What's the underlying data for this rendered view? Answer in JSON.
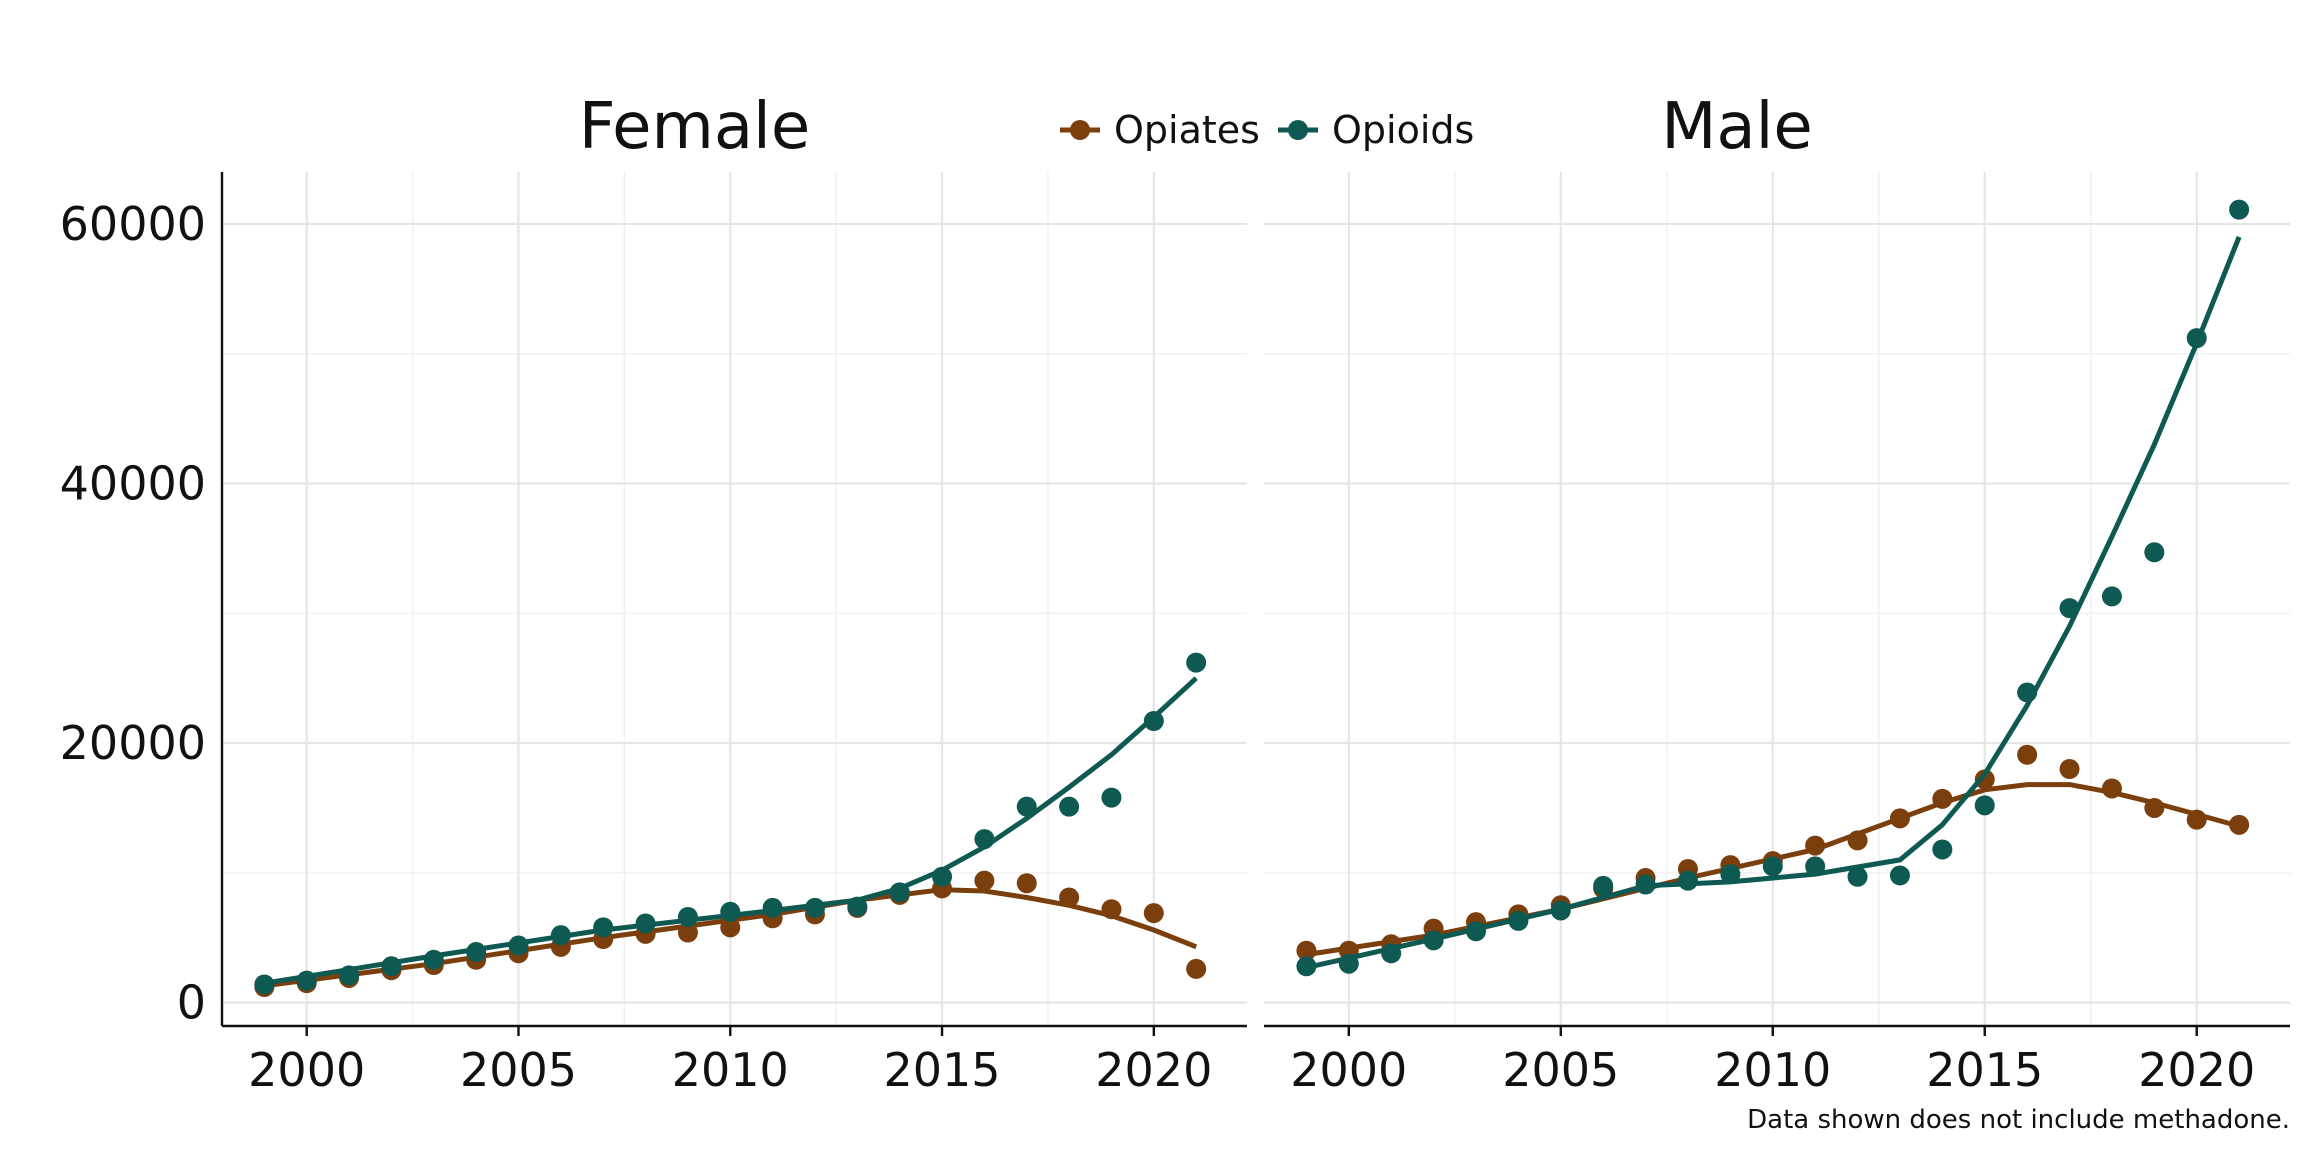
{
  "chart_data": {
    "type": "scatter",
    "legend": {
      "placement": "top-center",
      "entries": [
        {
          "name": "Opiates",
          "color": "#7B3F0E"
        },
        {
          "name": "Opioids",
          "color": "#0E5A52"
        }
      ]
    },
    "caption": "Data shown does not include methadone.",
    "x_ticks": [
      2000,
      2005,
      2010,
      2015,
      2020
    ],
    "y_ticks": [
      0,
      20000,
      40000,
      60000
    ],
    "xlim": [
      1998.0,
      2022.2
    ],
    "ylim": [
      -1800,
      64000
    ],
    "grid": true,
    "smoothed_trend_lines": true,
    "panels": [
      {
        "title": "Female",
        "series": [
          {
            "name": "Opiates",
            "color": "#7B3F0E",
            "x": [
              1999,
              2000,
              2001,
              2002,
              2003,
              2004,
              2005,
              2006,
              2007,
              2008,
              2009,
              2010,
              2011,
              2012,
              2013,
              2014,
              2015,
              2016,
              2017,
              2018,
              2019,
              2020,
              2021
            ],
            "y": [
              1200,
              1500,
              1900,
              2500,
              2900,
              3300,
              3800,
              4300,
              4900,
              5300,
              5400,
              5800,
              6500,
              6800,
              7300,
              8300,
              8800,
              9400,
              9200,
              8100,
              7200,
              6900,
              2600
            ],
            "trend": [
              [
                1999,
                1300
              ],
              [
                2003,
                3000
              ],
              [
                2007,
                5000
              ],
              [
                2011,
                6800
              ],
              [
                2013,
                7900
              ],
              [
                2015,
                8700
              ],
              [
                2016,
                8600
              ],
              [
                2017,
                8100
              ],
              [
                2018,
                7500
              ],
              [
                2019,
                6700
              ],
              [
                2020,
                5600
              ],
              [
                2021,
                4300
              ]
            ]
          },
          {
            "name": "Opioids",
            "color": "#0E5A52",
            "x": [
              1999,
              2000,
              2001,
              2002,
              2003,
              2004,
              2005,
              2006,
              2007,
              2008,
              2009,
              2010,
              2011,
              2012,
              2013,
              2014,
              2015,
              2016,
              2017,
              2018,
              2019,
              2020,
              2021
            ],
            "y": [
              1400,
              1700,
              2100,
              2800,
              3300,
              3900,
              4400,
              5200,
              5800,
              6100,
              6600,
              7000,
              7300,
              7300,
              7400,
              8500,
              9700,
              12600,
              15100,
              15100,
              15800,
              21700,
              26200
            ],
            "trend": [
              [
                1999,
                1500
              ],
              [
                2003,
                3600
              ],
              [
                2007,
                5600
              ],
              [
                2011,
                7100
              ],
              [
                2013,
                7900
              ],
              [
                2014,
                8800
              ],
              [
                2015,
                10200
              ],
              [
                2016,
                12000
              ],
              [
                2017,
                14200
              ],
              [
                2018,
                16600
              ],
              [
                2019,
                19100
              ],
              [
                2020,
                22000
              ],
              [
                2021,
                25000
              ]
            ]
          }
        ]
      },
      {
        "title": "Male",
        "series": [
          {
            "name": "Opiates",
            "color": "#7B3F0E",
            "x": [
              1999,
              2000,
              2001,
              2002,
              2003,
              2004,
              2005,
              2006,
              2007,
              2008,
              2009,
              2010,
              2011,
              2012,
              2013,
              2014,
              2015,
              2016,
              2017,
              2018,
              2019,
              2020,
              2021
            ],
            "y": [
              4000,
              4000,
              4500,
              5700,
              6200,
              6800,
              7500,
              8800,
              9600,
              10300,
              10600,
              10900,
              12100,
              12500,
              14200,
              15700,
              17200,
              19100,
              18000,
              16500,
              15000,
              14100,
              13700
            ],
            "trend": [
              [
                1999,
                3700
              ],
              [
                2002,
                5200
              ],
              [
                2005,
                7200
              ],
              [
                2008,
                9600
              ],
              [
                2011,
                11800
              ],
              [
                2013,
                14200
              ],
              [
                2014,
                15400
              ],
              [
                2015,
                16400
              ],
              [
                2016,
                16800
              ],
              [
                2017,
                16800
              ],
              [
                2018,
                16200
              ],
              [
                2019,
                15400
              ],
              [
                2020,
                14500
              ],
              [
                2021,
                13600
              ]
            ]
          },
          {
            "name": "Opioids",
            "color": "#0E5A52",
            "x": [
              1999,
              2000,
              2001,
              2002,
              2003,
              2004,
              2005,
              2006,
              2007,
              2008,
              2009,
              2010,
              2011,
              2012,
              2013,
              2014,
              2015,
              2016,
              2017,
              2018,
              2019,
              2020,
              2021
            ],
            "y": [
              2800,
              3000,
              3800,
              4800,
              5500,
              6300,
              7100,
              9000,
              9100,
              9400,
              9900,
              10500,
              10500,
              9700,
              9800,
              11800,
              15200,
              23900,
              30400,
              31300,
              34700,
              51200,
              61100
            ],
            "trend": [
              [
                1999,
                2700
              ],
              [
                2002,
                4900
              ],
              [
                2005,
                7200
              ],
              [
                2007,
                9000
              ],
              [
                2009,
                9300
              ],
              [
                2011,
                9900
              ],
              [
                2013,
                11000
              ],
              [
                2014,
                13700
              ],
              [
                2015,
                17600
              ],
              [
                2016,
                22900
              ],
              [
                2017,
                29000
              ],
              [
                2018,
                35900
              ],
              [
                2019,
                43000
              ],
              [
                2020,
                50800
              ],
              [
                2021,
                59000
              ]
            ]
          }
        ]
      }
    ]
  }
}
